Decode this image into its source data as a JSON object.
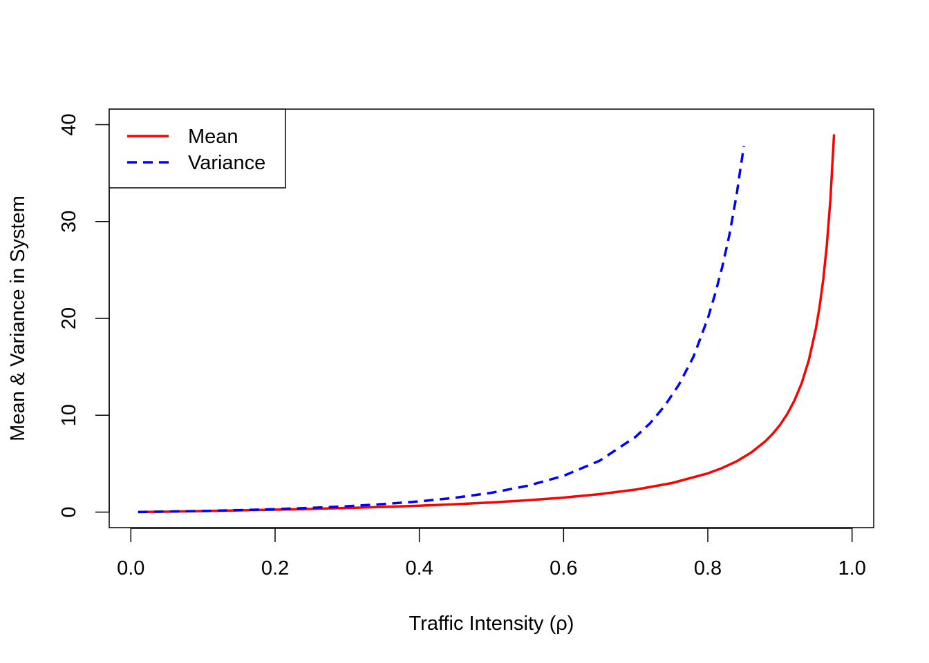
{
  "chart_data": {
    "type": "line",
    "title": "",
    "xlabel": "Traffic Intensity (ρ)",
    "ylabel": "Mean & Variance in System",
    "xlim": [
      -0.03,
      1.03
    ],
    "ylim": [
      -1.6,
      41.6
    ],
    "x_ticks": [
      0.0,
      0.2,
      0.4,
      0.6,
      0.8,
      1.0
    ],
    "x_tick_labels": [
      "0.0",
      "0.2",
      "0.4",
      "0.6",
      "0.8",
      "1.0"
    ],
    "y_ticks": [
      0,
      10,
      20,
      30,
      40
    ],
    "y_tick_labels": [
      "0",
      "10",
      "20",
      "30",
      "40"
    ],
    "grid": false,
    "legend_position": "top-left",
    "series": [
      {
        "name": "Mean",
        "color": "#ff0000",
        "style": "solid",
        "x": [
          0.01,
          0.05,
          0.1,
          0.15,
          0.2,
          0.25,
          0.3,
          0.35,
          0.4,
          0.45,
          0.5,
          0.55,
          0.6,
          0.65,
          0.7,
          0.75,
          0.8,
          0.82,
          0.84,
          0.86,
          0.88,
          0.89,
          0.9,
          0.91,
          0.92,
          0.93,
          0.94,
          0.95,
          0.955,
          0.96,
          0.965,
          0.97,
          0.975
        ],
        "y": [
          0.01,
          0.05,
          0.11,
          0.18,
          0.25,
          0.33,
          0.43,
          0.54,
          0.67,
          0.82,
          1.0,
          1.22,
          1.5,
          1.86,
          2.33,
          3.0,
          4.0,
          4.56,
          5.25,
          6.14,
          7.33,
          8.09,
          9.0,
          10.11,
          11.5,
          13.29,
          15.67,
          19.0,
          21.22,
          24.0,
          27.57,
          32.33,
          39.0
        ]
      },
      {
        "name": "Variance",
        "color": "#0000ff",
        "style": "dashed",
        "x": [
          0.01,
          0.05,
          0.1,
          0.15,
          0.2,
          0.25,
          0.3,
          0.35,
          0.4,
          0.45,
          0.5,
          0.55,
          0.6,
          0.65,
          0.7,
          0.72,
          0.74,
          0.76,
          0.78,
          0.8,
          0.81,
          0.82,
          0.83,
          0.84,
          0.845,
          0.85
        ],
        "y": [
          0.01,
          0.06,
          0.12,
          0.21,
          0.31,
          0.44,
          0.61,
          0.83,
          1.11,
          1.49,
          2.0,
          2.72,
          3.75,
          5.31,
          7.78,
          9.18,
          10.95,
          13.17,
          16.03,
          20.0,
          22.5,
          25.31,
          28.64,
          32.81,
          35.36,
          37.78
        ]
      }
    ]
  }
}
